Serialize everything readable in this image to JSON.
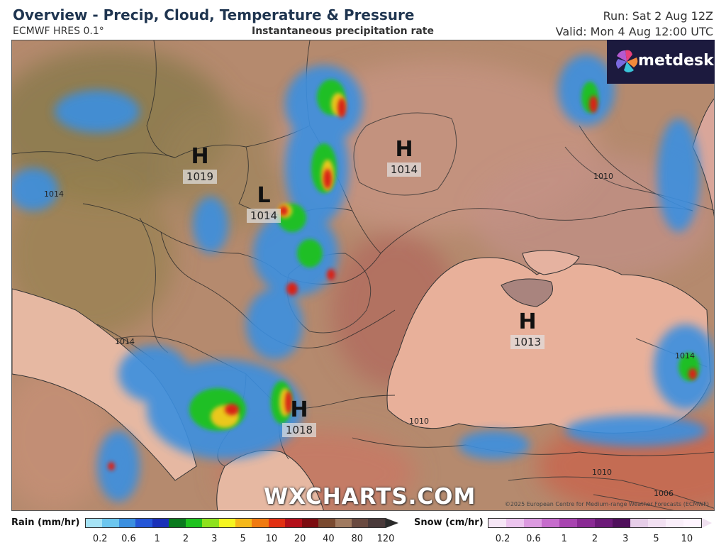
{
  "header": {
    "title": "Overview - Precip, Cloud, Temperature & Pressure",
    "model": "ECMWF HRES 0.1°",
    "variable": "Instantaneous precipitation rate",
    "run": "Run: Sat 2 Aug 12Z",
    "valid": "Valid: Mon 4 Aug 12:00 UTC"
  },
  "logo": {
    "text": "metdesk",
    "icon": "metdesk-pinwheel-icon"
  },
  "pressure_centers": [
    {
      "type": "H",
      "value": "1019"
    },
    {
      "type": "L",
      "value": "1014"
    },
    {
      "type": "H",
      "value": "1014"
    },
    {
      "type": "H",
      "value": "1013"
    },
    {
      "type": "H",
      "value": "1018"
    }
  ],
  "isobar_labels": [
    "1010",
    "1010",
    "1006",
    "1014",
    "1014",
    "1014",
    "1010"
  ],
  "watermark": "WXCHARTS.COM",
  "copyright": "©2025 European Centre for Medium-range Weather Forecasts (ECMWF)",
  "legend": {
    "rain": {
      "label": "Rain (mm/hr)",
      "ticks": [
        "0.2",
        "0.6",
        "1",
        "2",
        "3",
        "5",
        "10",
        "20",
        "40",
        "80",
        "120"
      ],
      "colors": [
        "#a6e3f5",
        "#6cc6ee",
        "#3a8fe0",
        "#2456d8",
        "#1a30b8",
        "#0a7a1e",
        "#1fc21f",
        "#8ee21e",
        "#f5f520",
        "#f5b81a",
        "#f07a10",
        "#e23012",
        "#b4101a",
        "#7c0c10",
        "#7a4a30",
        "#a07a60",
        "#6a4a40",
        "#4a3a3a"
      ]
    },
    "snow": {
      "label": "Snow (cm/hr)",
      "ticks": [
        "0.2",
        "0.6",
        "1",
        "2",
        "3",
        "5",
        "10"
      ],
      "colors": [
        "#f6e6f6",
        "#ecc4ee",
        "#dc9ae0",
        "#c66ccc",
        "#a844b0",
        "#8a2a94",
        "#6c1a78",
        "#50105c",
        "#e6cde8",
        "#f2e0f2",
        "#faeefa",
        "#fff4ff"
      ]
    }
  }
}
